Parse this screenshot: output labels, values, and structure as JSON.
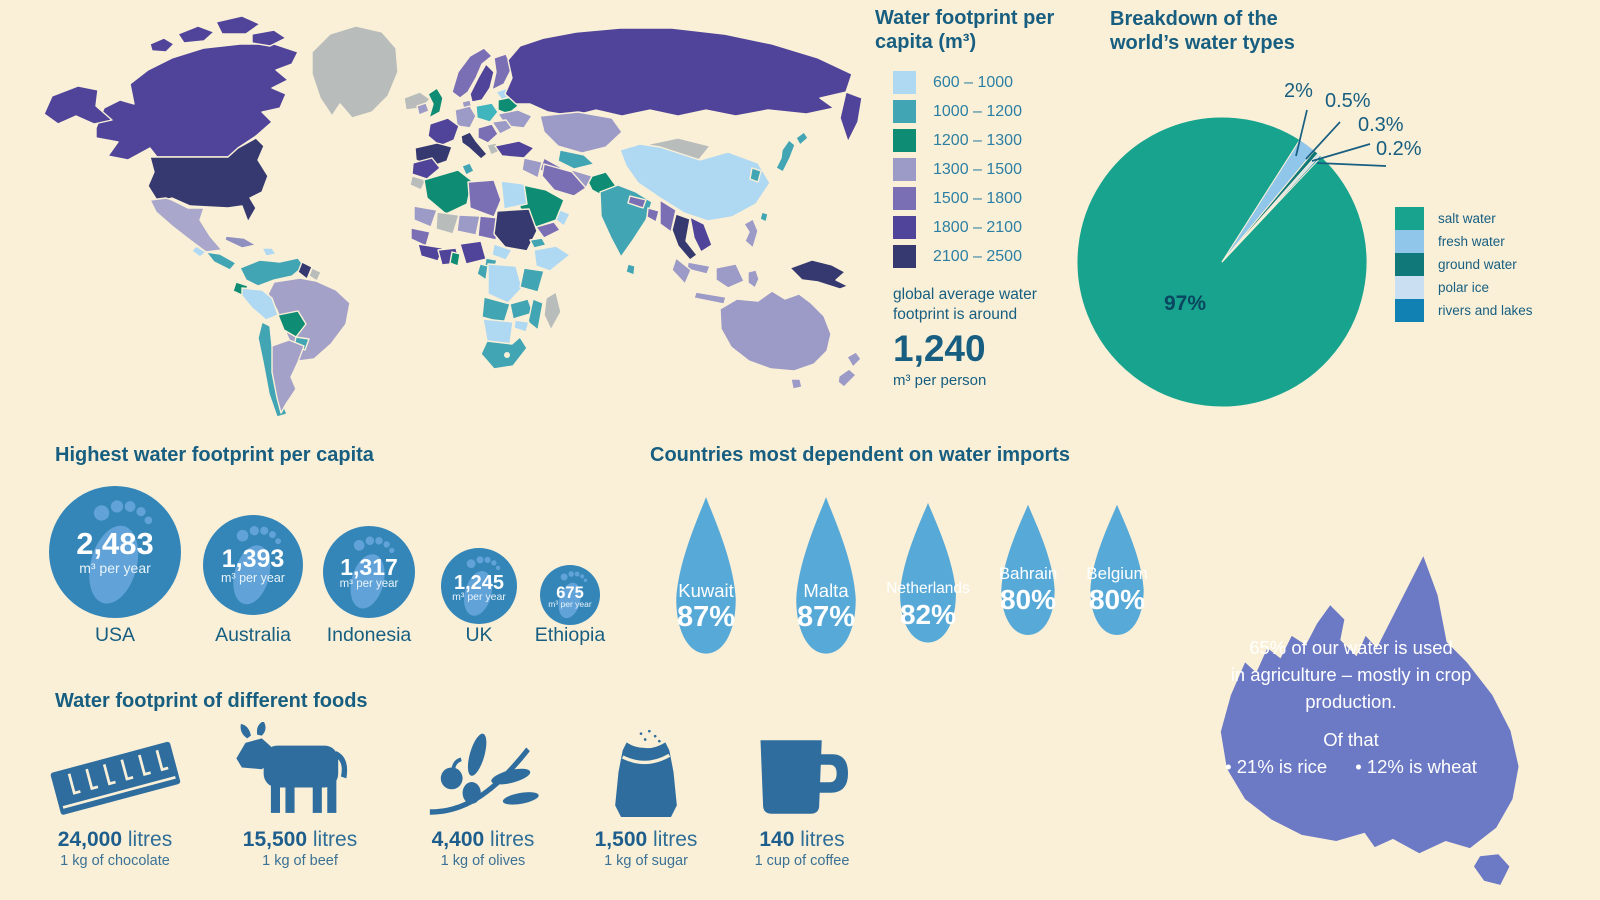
{
  "colors": {
    "background": "#FAF0D8",
    "ink": "#175E80",
    "legend_ink": "#2C7FA3",
    "bubble_blue": "#3486B8",
    "foot_blue": "#61A3D8",
    "drop_blue": "#57A9D7",
    "food_icon_blue": "#2E6D9E",
    "australia_purple": "#6C79C4",
    "map_no_data_gray": "#B8BCBB"
  },
  "map_legend": {
    "title": "Water footprint per capita (m³)",
    "items": [
      {
        "label": "600 – 1000",
        "color": "#AFD8F2"
      },
      {
        "label": "1000 – 1200",
        "color": "#41A5B4"
      },
      {
        "label": "1200 – 1300",
        "color": "#0F8C74"
      },
      {
        "label": "1300 – 1500",
        "color": "#9C9AC6"
      },
      {
        "label": "1500 – 1800",
        "color": "#7A6FB4"
      },
      {
        "label": "1800 – 2100",
        "color": "#4F4499"
      },
      {
        "label": "2100 – 2500",
        "color": "#35396F"
      }
    ],
    "note_line1": "global average water",
    "note_line2": "footprint is around",
    "average_value": "1,240",
    "average_unit": "m³ per person"
  },
  "pie": {
    "title": "Breakdown of the world’s water types",
    "inside_label": "97%",
    "callouts": [
      "2%",
      "0.5%",
      "0.3%",
      "0.2%"
    ],
    "legend": [
      {
        "label": "salt water",
        "color": "#18A38E"
      },
      {
        "label": "fresh water",
        "color": "#8FC6EA"
      },
      {
        "label": "ground water",
        "color": "#11787A"
      },
      {
        "label": "polar ice",
        "color": "#CBDFF2"
      },
      {
        "label": "rivers and lakes",
        "color": "#1180B2"
      }
    ]
  },
  "footprints": {
    "title": "Highest water footprint per capita",
    "items": [
      {
        "country": "USA",
        "value": "2,483",
        "unit": "m³ per year"
      },
      {
        "country": "Australia",
        "value": "1,393",
        "unit": "m³ per year"
      },
      {
        "country": "Indonesia",
        "value": "1,317",
        "unit": "m³ per year"
      },
      {
        "country": "UK",
        "value": "1,245",
        "unit": "m³ per year"
      },
      {
        "country": "Ethiopia",
        "value": "675",
        "unit": "m³ per year"
      }
    ]
  },
  "imports": {
    "title": "Countries most dependent on water imports",
    "items": [
      {
        "country": "Kuwait",
        "value": "87%"
      },
      {
        "country": "Malta",
        "value": "87%"
      },
      {
        "country": "Netherlands",
        "value": "82%"
      },
      {
        "country": "Bahrain",
        "value": "80%"
      },
      {
        "country": "Belgium",
        "value": "80%"
      }
    ]
  },
  "australia_fact": {
    "lines": [
      "65% of our water is used",
      "in agriculture – mostly in crop",
      "production.",
      "Of that",
      "• 21% is rice",
      "• 12% is wheat"
    ]
  },
  "foods": {
    "title": "Water footprint of different foods",
    "items": [
      {
        "value": "24,000",
        "unit": "litres",
        "caption": "1 kg of chocolate",
        "icon": "chocolate-bar-icon"
      },
      {
        "value": "15,500",
        "unit": "litres",
        "caption": "1 kg of beef",
        "icon": "cow-icon"
      },
      {
        "value": "4,400",
        "unit": "litres",
        "caption": "1 kg of olives",
        "icon": "olive-branch-icon"
      },
      {
        "value": "1,500",
        "unit": "litres",
        "caption": "1 kg of sugar",
        "icon": "sugar-bag-icon"
      },
      {
        "value": "140",
        "unit": "litres",
        "caption": "1 cup of coffee",
        "icon": "coffee-mug-icon"
      }
    ]
  },
  "chart_data": [
    {
      "type": "pie",
      "title": "Breakdown of the world’s water types",
      "labels": [
        "salt water",
        "fresh water",
        "ground water",
        "polar ice",
        "rivers and lakes"
      ],
      "values": [
        97,
        2,
        0.5,
        0.3,
        0.2
      ],
      "unit": "%",
      "colors": [
        "#18A38E",
        "#8FC6EA",
        "#11787A",
        "#CBDFF2",
        "#1180B2"
      ],
      "legend_position": "right",
      "annotations": [
        "97%",
        "2%",
        "0.5%",
        "0.3%",
        "0.2%"
      ]
    },
    {
      "type": "bar",
      "title": "Highest water footprint per capita",
      "categories": [
        "USA",
        "Australia",
        "Indonesia",
        "UK",
        "Ethiopia"
      ],
      "values": [
        2483,
        1393,
        1317,
        1245,
        675
      ],
      "unit": "m³ per year",
      "representation": "proportional circles with footprint icons"
    },
    {
      "type": "bar",
      "title": "Countries most dependent on water imports",
      "categories": [
        "Kuwait",
        "Malta",
        "Netherlands",
        "Bahrain",
        "Belgium"
      ],
      "values": [
        87,
        87,
        82,
        80,
        80
      ],
      "unit": "%",
      "representation": "water drop icons"
    },
    {
      "type": "bar",
      "title": "Water footprint of different foods",
      "categories": [
        "1 kg of chocolate",
        "1 kg of beef",
        "1 kg of olives",
        "1 kg of sugar",
        "1 cup of coffee"
      ],
      "values": [
        24000,
        15500,
        4400,
        1500,
        140
      ],
      "unit": "litres"
    },
    {
      "type": "heatmap",
      "title": "World choropleth map of water footprint per capita (m³)",
      "bins": [
        "600 – 1000",
        "1000 – 1200",
        "1200 – 1300",
        "1300 – 1500",
        "1500 – 1800",
        "1800 – 2100",
        "2100 – 2500"
      ],
      "bin_colors": [
        "#AFD8F2",
        "#41A5B4",
        "#0F8C74",
        "#9C9AC6",
        "#7A6FB4",
        "#4F4499",
        "#35396F"
      ],
      "no_data_color": "#B8BCBB",
      "note": "global average water footprint is around 1,240 m³ per person"
    }
  ]
}
